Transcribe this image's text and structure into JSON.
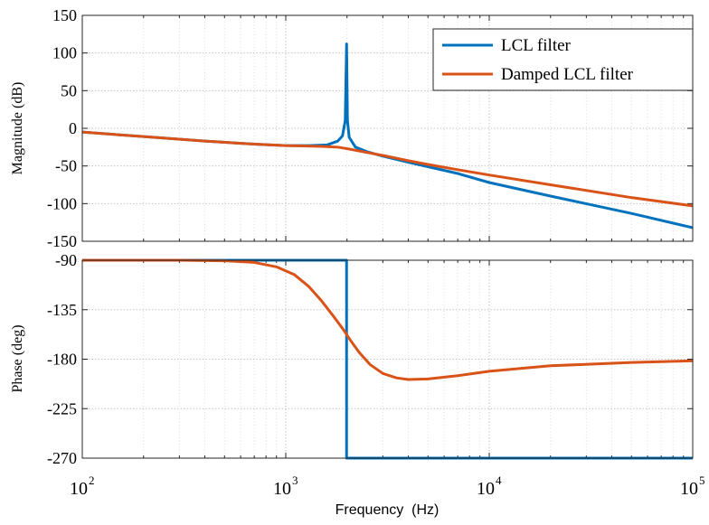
{
  "chart_data": [
    {
      "type": "line",
      "panel": "magnitude",
      "title": "",
      "xlabel": "",
      "ylabel": "Magnitude (dB)",
      "x_scale": "log",
      "xlim": [
        100,
        100000
      ],
      "ylim": [
        -150,
        150
      ],
      "y_ticks": [
        150,
        100,
        50,
        0,
        -50,
        -100,
        -150
      ],
      "grid": true,
      "legend_position": "top-right",
      "series": [
        {
          "name": "LCL filter",
          "color": "#0072BD",
          "points": [
            [
              100,
              -5
            ],
            [
              200,
              -11
            ],
            [
              400,
              -17
            ],
            [
              700,
              -21
            ],
            [
              1000,
              -23
            ],
            [
              1300,
              -23
            ],
            [
              1600,
              -22
            ],
            [
              1800,
              -17
            ],
            [
              1900,
              -10
            ],
            [
              1960,
              10
            ],
            [
              1990,
              112
            ],
            [
              2010,
              10
            ],
            [
              2050,
              -12
            ],
            [
              2200,
              -25
            ],
            [
              2500,
              -31
            ],
            [
              3000,
              -37
            ],
            [
              4000,
              -45
            ],
            [
              5000,
              -51
            ],
            [
              7000,
              -60
            ],
            [
              10000,
              -72
            ],
            [
              20000,
              -90
            ],
            [
              50000,
              -113
            ],
            [
              100000,
              -132
            ]
          ]
        },
        {
          "name": "Damped LCL filter",
          "color": "#D95319",
          "points": [
            [
              100,
              -5
            ],
            [
              200,
              -11
            ],
            [
              400,
              -17
            ],
            [
              700,
              -21
            ],
            [
              1000,
              -23
            ],
            [
              1500,
              -24
            ],
            [
              1800,
              -25
            ],
            [
              2000,
              -27
            ],
            [
              2500,
              -32
            ],
            [
              3000,
              -36
            ],
            [
              4000,
              -43
            ],
            [
              5000,
              -48
            ],
            [
              7000,
              -55
            ],
            [
              10000,
              -62
            ],
            [
              20000,
              -75
            ],
            [
              50000,
              -92
            ],
            [
              100000,
              -103
            ]
          ]
        }
      ]
    },
    {
      "type": "line",
      "panel": "phase",
      "title": "",
      "xlabel": "Frequency  (Hz)",
      "ylabel": "Phase (deg)",
      "x_scale": "log",
      "xlim": [
        100,
        100000
      ],
      "ylim": [
        -270,
        -90
      ],
      "y_ticks": [
        -90,
        -135,
        -180,
        -225,
        -270
      ],
      "x_ticks": [
        "10",
        "10",
        "10",
        "10"
      ],
      "x_tick_exponents": [
        "2",
        "3",
        "4",
        "5"
      ],
      "grid": true,
      "series": [
        {
          "name": "LCL filter",
          "color": "#0072BD",
          "points": [
            [
              100,
              -90
            ],
            [
              1990,
              -90
            ],
            [
              1990,
              -270
            ],
            [
              100000,
              -270
            ]
          ]
        },
        {
          "name": "Damped LCL filter",
          "color": "#D95319",
          "points": [
            [
              100,
              -90
            ],
            [
              300,
              -90
            ],
            [
              500,
              -90.5
            ],
            [
              700,
              -92
            ],
            [
              900,
              -96
            ],
            [
              1100,
              -103
            ],
            [
              1300,
              -114
            ],
            [
              1500,
              -127
            ],
            [
              1700,
              -140
            ],
            [
              1900,
              -152
            ],
            [
              2100,
              -164
            ],
            [
              2300,
              -174
            ],
            [
              2600,
              -185
            ],
            [
              3000,
              -193
            ],
            [
              3500,
              -197
            ],
            [
              4000,
              -198.5
            ],
            [
              5000,
              -198
            ],
            [
              7000,
              -195
            ],
            [
              10000,
              -191
            ],
            [
              20000,
              -186
            ],
            [
              50000,
              -183
            ],
            [
              100000,
              -181.5
            ]
          ]
        }
      ]
    }
  ]
}
